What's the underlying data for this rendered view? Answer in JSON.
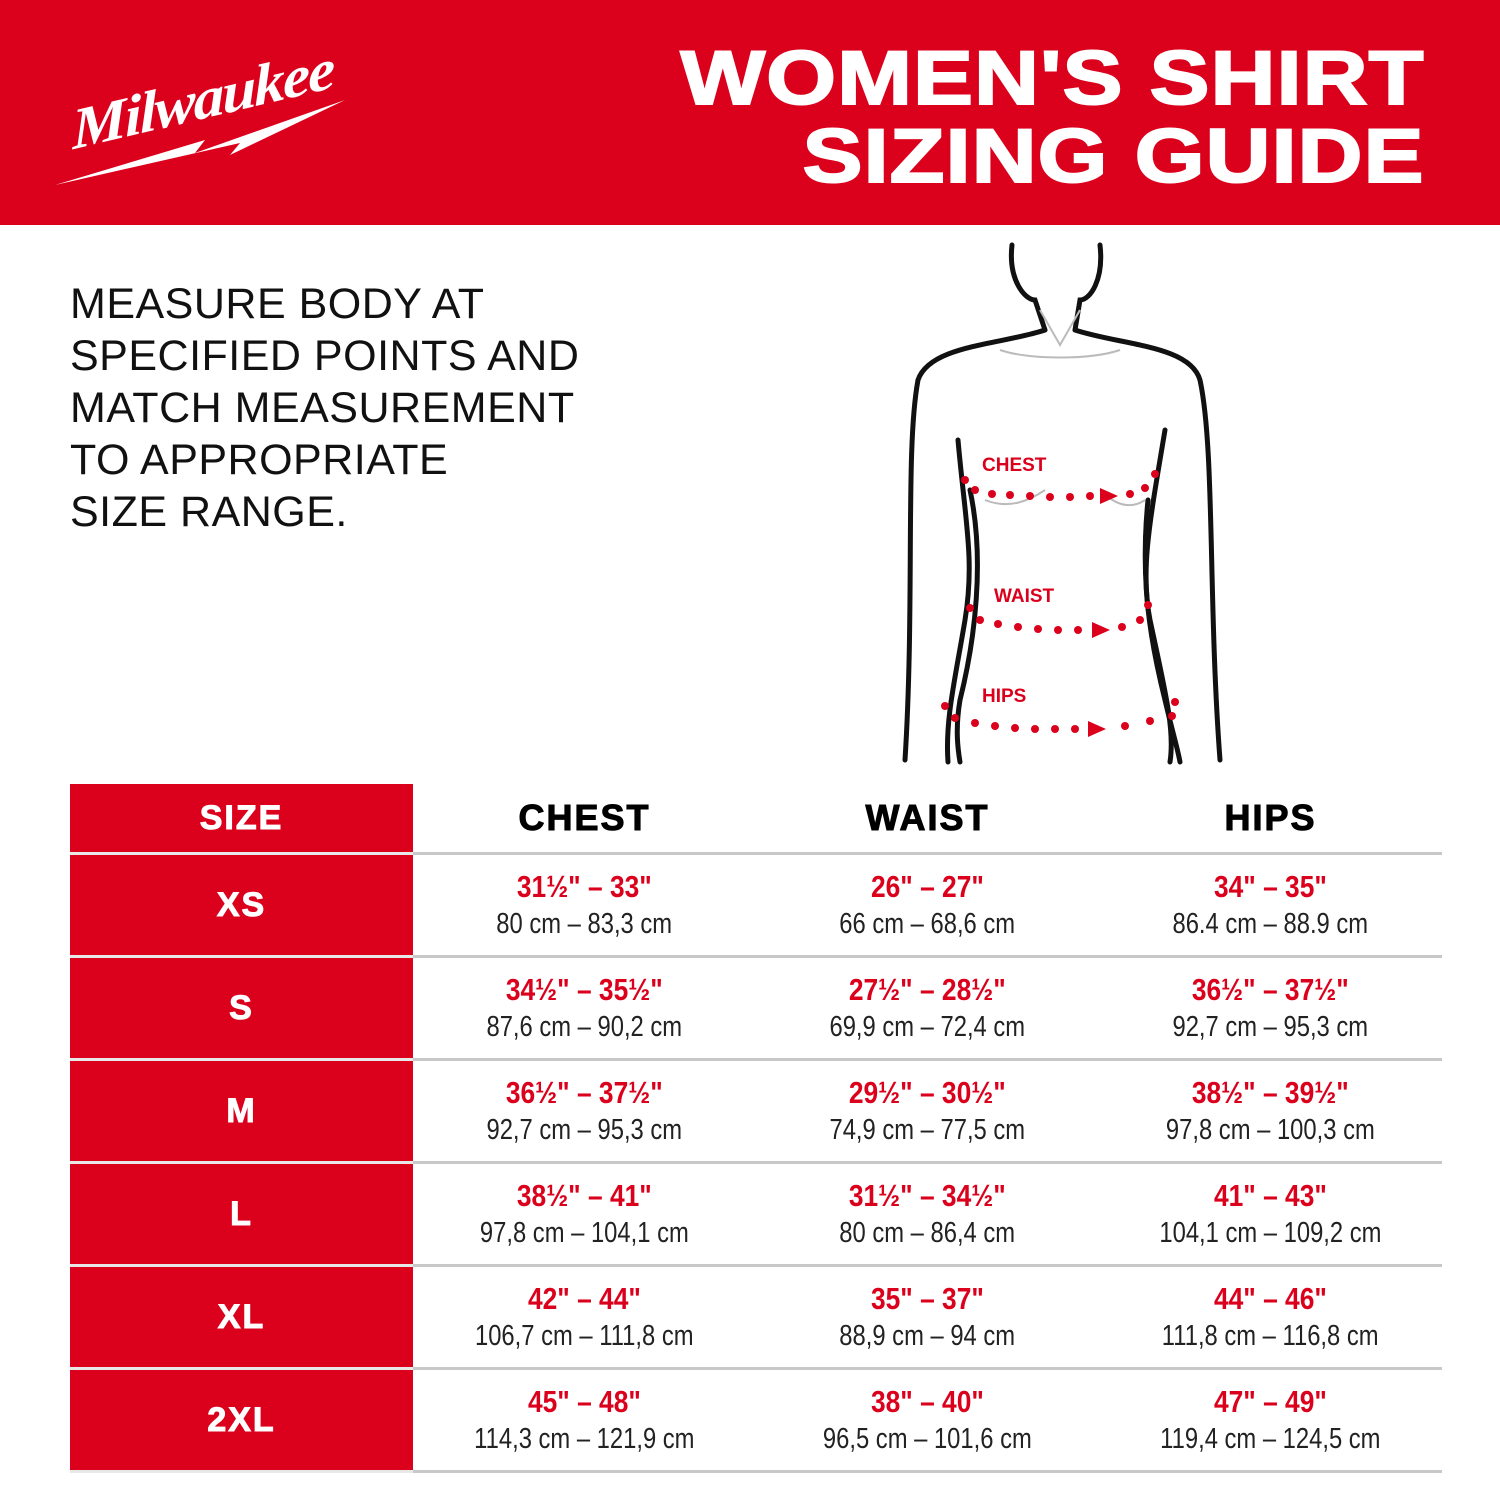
{
  "colors": {
    "brand_red": "#db011c",
    "text": "#111111",
    "divider": "#c8c8c8"
  },
  "logo": {
    "text": "Milwaukee",
    "icon": "lightning-bolt-icon"
  },
  "title": {
    "line1": "WOMEN'S SHIRT",
    "line2": "SIZING GUIDE"
  },
  "instructions": [
    "MEASURE BODY AT",
    "SPECIFIED POINTS AND",
    "MATCH MEASUREMENT",
    "TO APPROPRIATE",
    "SIZE RANGE."
  ],
  "figure": {
    "labels": {
      "chest": "CHEST",
      "waist": "WAIST",
      "hips": "HIPS"
    }
  },
  "table": {
    "headers": [
      "SIZE",
      "CHEST",
      "WAIST",
      "HIPS"
    ],
    "rows": [
      {
        "size": "XS",
        "chest": {
          "in": "31½\" – 33\"",
          "cm": "80 cm – 83,3 cm"
        },
        "waist": {
          "in": "26\" – 27\"",
          "cm": "66 cm – 68,6 cm"
        },
        "hips": {
          "in": "34\" – 35\"",
          "cm": "86.4 cm – 88.9 cm"
        }
      },
      {
        "size": "S",
        "chest": {
          "in": "34½\" – 35½\"",
          "cm": "87,6 cm – 90,2 cm"
        },
        "waist": {
          "in": "27½\" – 28½\"",
          "cm": "69,9 cm – 72,4 cm"
        },
        "hips": {
          "in": "36½\" – 37½\"",
          "cm": "92,7 cm – 95,3 cm"
        }
      },
      {
        "size": "M",
        "chest": {
          "in": "36½\" – 37½\"",
          "cm": "92,7 cm – 95,3 cm"
        },
        "waist": {
          "in": "29½\" – 30½\"",
          "cm": "74,9 cm – 77,5 cm"
        },
        "hips": {
          "in": "38½\" – 39½\"",
          "cm": "97,8 cm – 100,3 cm"
        }
      },
      {
        "size": "L",
        "chest": {
          "in": "38½\" – 41\"",
          "cm": "97,8 cm – 104,1 cm"
        },
        "waist": {
          "in": "31½\" – 34½\"",
          "cm": "80 cm – 86,4 cm"
        },
        "hips": {
          "in": "41\" – 43\"",
          "cm": "104,1 cm – 109,2 cm"
        }
      },
      {
        "size": "XL",
        "chest": {
          "in": "42\" – 44\"",
          "cm": "106,7 cm – 111,8 cm"
        },
        "waist": {
          "in": "35\" – 37\"",
          "cm": "88,9 cm – 94 cm"
        },
        "hips": {
          "in": "44\" – 46\"",
          "cm": "111,8 cm – 116,8 cm"
        }
      },
      {
        "size": "2XL",
        "chest": {
          "in": "45\" – 48\"",
          "cm": "114,3 cm – 121,9 cm"
        },
        "waist": {
          "in": "38\" – 40\"",
          "cm": "96,5 cm – 101,6 cm"
        },
        "hips": {
          "in": "47\" – 49\"",
          "cm": "119,4 cm – 124,5 cm"
        }
      }
    ]
  }
}
